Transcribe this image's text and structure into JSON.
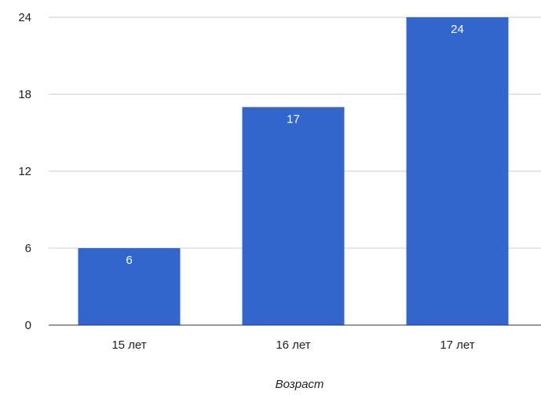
{
  "chart_data": {
    "type": "bar",
    "title": "",
    "xlabel": "Возраст",
    "ylabel": "",
    "categories": [
      "15 лет",
      "16 лет",
      "17 лет"
    ],
    "values": [
      6,
      17,
      24
    ],
    "data_labels": [
      "6",
      "17",
      "24"
    ],
    "ylim": [
      0,
      24
    ],
    "yticks": [
      0,
      6,
      12,
      18,
      24
    ],
    "ytick_labels": [
      "0",
      "6",
      "12",
      "18",
      "24"
    ],
    "grid": true,
    "legend": "none",
    "colors": {
      "bar": "#3366cc",
      "grid": "#cccccc",
      "baseline": "#333333",
      "data_label": "#ffffff",
      "text": "#222222"
    }
  }
}
